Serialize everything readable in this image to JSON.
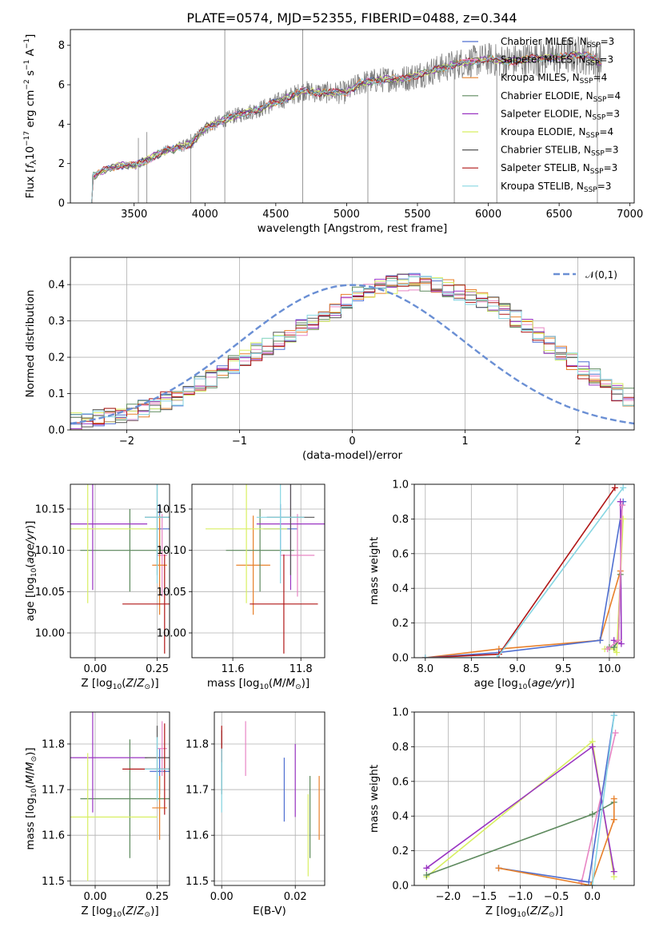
{
  "figure": {
    "title": "PLATE=0574, MJD=52355, FIBERID=0488, z=0.344"
  },
  "colors": {
    "chabrier_miles": "#4f6fd1",
    "salpeter_miles": "#e885c4",
    "kroupa_miles": "#e8802a",
    "chabrier_elodie": "#5e8a5e",
    "salpeter_elodie": "#9a35c2",
    "kroupa_elodie": "#d8ef62",
    "chabrier_stelib": "#555555",
    "salpeter_stelib": "#b01616",
    "kroupa_stelib": "#86d6e2",
    "gauss": "#6a8fd4",
    "grid": "#b0b0b0"
  },
  "chart_data": [
    {
      "type": "line",
      "title": "PLATE=0574, MJD=52355, FIBERID=0488, z=0.344",
      "xlabel": "wavelength [Angstrom, rest frame]",
      "ylabel": "Flux [fλ10⁻¹⁷ erg cm⁻² s⁻¹ A⁻¹]",
      "xlim": [
        3050,
        7030
      ],
      "ylim": [
        0,
        8.8
      ],
      "xticks": [
        3500,
        4000,
        4500,
        5000,
        5500,
        6000,
        6500,
        7000
      ],
      "yticks": [
        0,
        2,
        4,
        6,
        8
      ],
      "grid": false,
      "legend": "top-right",
      "observed_envelope": {
        "x": [
          3200,
          3300,
          3400,
          3500,
          3600,
          3700,
          3800,
          3900,
          4000,
          4100,
          4200,
          4300,
          4400,
          4500,
          4600,
          4700,
          4800,
          4900,
          5000,
          5100,
          5200,
          5300,
          5400,
          5500,
          5600,
          5700,
          5800,
          5900,
          6000,
          6100,
          6200,
          6300,
          6400,
          6500,
          6600,
          6700,
          6800
        ],
        "y": [
          1.3,
          1.7,
          1.9,
          1.9,
          2.2,
          2.6,
          2.8,
          3.0,
          3.8,
          4.1,
          4.4,
          4.6,
          4.8,
          5.1,
          5.4,
          5.7,
          5.6,
          5.6,
          5.6,
          6.1,
          6.2,
          6.3,
          6.3,
          6.5,
          6.7,
          6.9,
          7.1,
          7.2,
          7.3,
          7.2,
          7.2,
          7.3,
          7.4,
          7.4,
          7.5,
          7.5,
          7.1
        ]
      },
      "series": [
        {
          "name": "Chabrier MILES, N_SSP=3",
          "key": "chabrier_miles",
          "label_main": "Chabrier MILES, N",
          "label_sub": "SSP",
          "label_end": "=3"
        },
        {
          "name": "Salpeter MILES, N_SSP=3",
          "key": "salpeter_miles",
          "label_main": "Salpeter MILES, N",
          "label_sub": "SSP",
          "label_end": "=3"
        },
        {
          "name": "Kroupa MILES, N_SSP=4",
          "key": "kroupa_miles",
          "label_main": "Kroupa MILES, N",
          "label_sub": "SSP",
          "label_end": "=4"
        },
        {
          "name": "Chabrier ELODIE, N_SSP=4",
          "key": "chabrier_elodie",
          "label_main": "Chabrier ELODIE, N",
          "label_sub": "SSP",
          "label_end": "=4"
        },
        {
          "name": "Salpeter ELODIE, N_SSP=3",
          "key": "salpeter_elodie",
          "label_main": "Salpeter ELODIE, N",
          "label_sub": "SSP",
          "label_end": "=3"
        },
        {
          "name": "Kroupa ELODIE, N_SSP=4",
          "key": "kroupa_elodie",
          "label_main": "Kroupa ELODIE, N",
          "label_sub": "SSP",
          "label_end": "=4"
        },
        {
          "name": "Chabrier STELIB, N_SSP=3",
          "key": "chabrier_stelib",
          "label_main": "Chabrier STELIB, N",
          "label_sub": "SSP",
          "label_end": "=3"
        },
        {
          "name": "Salpeter STELIB, N_SSP=3",
          "key": "salpeter_stelib",
          "label_main": "Salpeter STELIB, N",
          "label_sub": "SSP",
          "label_end": "=3"
        },
        {
          "name": "Kroupa STELIB, N_SSP=3",
          "key": "kroupa_stelib",
          "label_main": "Kroupa STELIB, N",
          "label_sub": "SSP",
          "label_end": "=3"
        }
      ]
    },
    {
      "type": "line",
      "xlabel": "(data-model)/error",
      "ylabel": "Normed distribution",
      "xlim": [
        -2.5,
        2.5
      ],
      "ylim": [
        0,
        0.475
      ],
      "xticks": [
        -2,
        -1,
        0,
        1,
        2
      ],
      "yticks": [
        0.0,
        0.1,
        0.2,
        0.3,
        0.4
      ],
      "grid": true,
      "legend": "top-right",
      "legend_entry": "𝒩(0,1)",
      "histogram": {
        "bin_width": 0.1,
        "x_start": -2.5,
        "densities": [
          0.025,
          0.03,
          0.035,
          0.04,
          0.045,
          0.05,
          0.06,
          0.07,
          0.08,
          0.09,
          0.11,
          0.125,
          0.14,
          0.16,
          0.18,
          0.2,
          0.215,
          0.23,
          0.245,
          0.26,
          0.28,
          0.3,
          0.315,
          0.33,
          0.35,
          0.37,
          0.38,
          0.39,
          0.4,
          0.405,
          0.41,
          0.405,
          0.4,
          0.39,
          0.38,
          0.37,
          0.36,
          0.345,
          0.325,
          0.305,
          0.285,
          0.26,
          0.235,
          0.21,
          0.19,
          0.165,
          0.145,
          0.125,
          0.105,
          0.09
        ]
      },
      "gaussian": {
        "mean": 0,
        "sigma": 1
      }
    },
    {
      "type": "scatter",
      "xlabel": "Z [log10(Z/Z⊙)]",
      "ylabel": "age  [log10(age/yr)]",
      "xlim": [
        -0.1,
        0.3
      ],
      "ylim": [
        9.97,
        10.18
      ],
      "xticks": [
        0.0,
        0.25
      ],
      "yticks": [
        10.0,
        10.05,
        10.1,
        10.15
      ],
      "grid": true,
      "points": [
        {
          "series": "chabrier_miles",
          "x": 0.26,
          "y": 10.126,
          "xerr": 0.04,
          "yerr": 0.03
        },
        {
          "series": "salpeter_miles",
          "x": 0.27,
          "y": 10.094,
          "xerr": 0.02,
          "yerr": 0.05
        },
        {
          "series": "kroupa_miles",
          "x": 0.26,
          "y": 10.082,
          "xerr": 0.03,
          "yerr": 0.06
        },
        {
          "series": "chabrier_elodie",
          "x": 0.14,
          "y": 10.1,
          "xerr": 0.2,
          "yerr": 0.05
        },
        {
          "series": "salpeter_elodie",
          "x": -0.01,
          "y": 10.132,
          "xerr": 0.22,
          "yerr": 0.08
        },
        {
          "series": "kroupa_elodie",
          "x": -0.03,
          "y": 10.126,
          "xerr": 0.28,
          "yerr": 0.09
        },
        {
          "series": "chabrier_stelib",
          "x": 0.25,
          "y": 10.14,
          "xerr": 0.05,
          "yerr": 0.07
        },
        {
          "series": "salpeter_stelib",
          "x": 0.28,
          "y": 10.035,
          "xerr": 0.17,
          "yerr": 0.06
        },
        {
          "series": "kroupa_stelib",
          "x": 0.25,
          "y": 10.14,
          "xerr": 0.05,
          "yerr": 0.08
        }
      ]
    },
    {
      "type": "scatter",
      "xlabel": "mass [log10(M/M⊙)]",
      "ylabel": "",
      "xlim": [
        11.48,
        11.87
      ],
      "ylim": [
        9.97,
        10.18
      ],
      "xticks": [
        11.6,
        11.8
      ],
      "yticks": [
        10.0,
        10.05,
        10.1,
        10.15
      ],
      "grid": true,
      "points": [
        {
          "series": "chabrier_miles",
          "x": 11.74,
          "y": 10.126,
          "xerr": 0.05,
          "yerr": 0.03
        },
        {
          "series": "salpeter_miles",
          "x": 11.79,
          "y": 10.094,
          "xerr": 0.05,
          "yerr": 0.05
        },
        {
          "series": "kroupa_miles",
          "x": 11.66,
          "y": 10.082,
          "xerr": 0.05,
          "yerr": 0.06
        },
        {
          "series": "chabrier_elodie",
          "x": 11.68,
          "y": 10.1,
          "xerr": 0.1,
          "yerr": 0.05
        },
        {
          "series": "salpeter_elodie",
          "x": 11.77,
          "y": 10.132,
          "xerr": 0.1,
          "yerr": 0.08
        },
        {
          "series": "kroupa_elodie",
          "x": 11.64,
          "y": 10.126,
          "xerr": 0.12,
          "yerr": 0.09
        },
        {
          "series": "chabrier_stelib",
          "x": 11.77,
          "y": 10.14,
          "xerr": 0.07,
          "yerr": 0.07
        },
        {
          "series": "salpeter_stelib",
          "x": 11.75,
          "y": 10.035,
          "xerr": 0.1,
          "yerr": 0.06
        },
        {
          "series": "kroupa_stelib",
          "x": 11.74,
          "y": 10.14,
          "xerr": 0.07,
          "yerr": 0.08
        }
      ]
    },
    {
      "type": "line",
      "xlabel": "age  [log10(age/yr)]",
      "ylabel": "mass weight",
      "xlim": [
        7.88,
        10.27
      ],
      "ylim": [
        0,
        1.0
      ],
      "xticks": [
        8.0,
        8.5,
        9.0,
        9.5,
        10.0
      ],
      "yticks": [
        0.0,
        0.2,
        0.4,
        0.6,
        0.8,
        1.0
      ],
      "grid": true,
      "series": [
        {
          "key": "kroupa_miles",
          "x": [
            8.0,
            8.8,
            9.9,
            10.12
          ],
          "y": [
            0.0,
            0.05,
            0.1,
            0.5
          ]
        },
        {
          "key": "chabrier_miles",
          "x": [
            8.0,
            8.8,
            9.9,
            10.15
          ],
          "y": [
            0.0,
            0.03,
            0.1,
            0.9
          ]
        },
        {
          "key": "salpeter_stelib",
          "x": [
            8.0,
            8.8,
            10.06
          ],
          "y": [
            0.0,
            0.02,
            0.98
          ]
        },
        {
          "key": "kroupa_stelib",
          "x": [
            8.0,
            8.78,
            10.15
          ],
          "y": [
            0.0,
            0.0,
            0.98
          ]
        },
        {
          "key": "salpeter_elodie",
          "x": [
            10.05,
            10.13,
            10.12
          ],
          "y": [
            0.1,
            0.08,
            0.9
          ]
        },
        {
          "key": "kroupa_elodie",
          "x": [
            9.95,
            10.05,
            10.08,
            10.15
          ],
          "y": [
            0.05,
            0.05,
            0.03,
            0.8
          ]
        },
        {
          "key": "chabrier_elodie",
          "x": [
            10.0,
            10.05,
            10.1,
            10.12
          ],
          "y": [
            0.06,
            0.06,
            0.1,
            0.48
          ]
        },
        {
          "key": "salpeter_miles",
          "x": [
            9.98,
            10.1,
            10.14
          ],
          "y": [
            0.05,
            0.1,
            0.88
          ]
        }
      ]
    },
    {
      "type": "scatter",
      "xlabel": "Z [log10(Z/Z⊙)]",
      "ylabel": "mass [log10(M/M⊙)]",
      "xlim": [
        -0.1,
        0.3
      ],
      "ylim": [
        11.49,
        11.87
      ],
      "xticks": [
        0.0,
        0.25
      ],
      "yticks": [
        11.5,
        11.6,
        11.7,
        11.8
      ],
      "grid": true,
      "points": [
        {
          "series": "chabrier_miles",
          "x": 0.26,
          "y": 11.74,
          "xerr": 0.04,
          "yerr": 0.05
        },
        {
          "series": "salpeter_miles",
          "x": 0.27,
          "y": 11.79,
          "xerr": 0.02,
          "yerr": 0.06
        },
        {
          "series": "kroupa_miles",
          "x": 0.26,
          "y": 11.66,
          "xerr": 0.03,
          "yerr": 0.07
        },
        {
          "series": "chabrier_elodie",
          "x": 0.14,
          "y": 11.68,
          "xerr": 0.2,
          "yerr": 0.13
        },
        {
          "series": "salpeter_elodie",
          "x": -0.01,
          "y": 11.77,
          "xerr": 0.22,
          "yerr": 0.12
        },
        {
          "series": "kroupa_elodie",
          "x": -0.03,
          "y": 11.64,
          "xerr": 0.28,
          "yerr": 0.14
        },
        {
          "series": "chabrier_stelib",
          "x": 0.25,
          "y": 11.77,
          "xerr": 0.05,
          "yerr": 0.07
        },
        {
          "series": "salpeter_stelib",
          "x": 0.28,
          "y": 11.745,
          "xerr": 0.17,
          "yerr": 0.1
        },
        {
          "series": "kroupa_stelib",
          "x": 0.25,
          "y": 11.745,
          "xerr": 0.05,
          "yerr": 0.07
        }
      ]
    },
    {
      "type": "scatter",
      "xlabel": "E(B-V)",
      "ylabel": "",
      "xlim": [
        -0.002,
        0.028
      ],
      "ylim": [
        11.49,
        11.87
      ],
      "xticks": [
        0.0,
        0.02
      ],
      "yticks": [
        11.5,
        11.6,
        11.7,
        11.8
      ],
      "grid": true,
      "points": [
        {
          "series": "chabrier_miles",
          "x": 0.017,
          "y": 11.7,
          "xerr": 0,
          "yerr": 0.07
        },
        {
          "series": "salpeter_miles",
          "x": 0.0065,
          "y": 11.79,
          "xerr": 0,
          "yerr": 0.06
        },
        {
          "series": "kroupa_miles",
          "x": 0.0265,
          "y": 11.66,
          "xerr": 0,
          "yerr": 0.07
        },
        {
          "series": "chabrier_elodie",
          "x": 0.024,
          "y": 11.64,
          "xerr": 0,
          "yerr": 0.09
        },
        {
          "series": "salpeter_elodie",
          "x": 0.02,
          "y": 11.72,
          "xerr": 0,
          "yerr": 0.08
        },
        {
          "series": "kroupa_elodie",
          "x": 0.0235,
          "y": 11.6,
          "xerr": 0,
          "yerr": 0.09
        },
        {
          "series": "chabrier_stelib",
          "x": 0.0,
          "y": 11.76,
          "xerr": 0,
          "yerr": 0.07
        },
        {
          "series": "salpeter_stelib",
          "x": 0.0,
          "y": 11.8,
          "xerr": 0,
          "yerr": 0.04
        },
        {
          "series": "kroupa_stelib",
          "x": 0.0,
          "y": 11.72,
          "xerr": 0,
          "yerr": 0.07
        }
      ]
    },
    {
      "type": "line",
      "xlabel": "Z [log10(Z/Z⊙)]",
      "ylabel": "mass weight",
      "xlim": [
        -2.47,
        0.58
      ],
      "ylim": [
        0,
        1.0
      ],
      "xticks": [
        -2.0,
        -1.5,
        -1.0,
        -0.5,
        0.0
      ],
      "yticks": [
        0.0,
        0.2,
        0.4,
        0.6,
        0.8,
        1.0
      ],
      "grid": true,
      "series": [
        {
          "key": "kroupa_elodie",
          "x": [
            -2.3,
            0.0,
            0.3
          ],
          "y": [
            0.05,
            0.83,
            0.05
          ]
        },
        {
          "key": "salpeter_elodie",
          "x": [
            -2.3,
            0.0,
            0.3
          ],
          "y": [
            0.1,
            0.8,
            0.08
          ]
        },
        {
          "key": "chabrier_elodie",
          "x": [
            -2.3,
            0.0,
            0.3
          ],
          "y": [
            0.06,
            0.41,
            0.48
          ]
        },
        {
          "key": "salpeter_miles",
          "x": [
            -0.15,
            0.32
          ],
          "y": [
            0.02,
            0.88
          ]
        },
        {
          "key": "chabrier_miles",
          "x": [
            -1.3,
            -0.05,
            0.3
          ],
          "y": [
            0.1,
            0.02,
            0.98
          ]
        },
        {
          "key": "kroupa_miles",
          "x": [
            -1.3,
            -0.02,
            0.3,
            0.3
          ],
          "y": [
            0.1,
            0.0,
            0.38,
            0.5
          ]
        },
        {
          "key": "kroupa_stelib",
          "x": [
            0.0,
            0.3
          ],
          "y": [
            0.0,
            0.98
          ]
        }
      ]
    }
  ]
}
